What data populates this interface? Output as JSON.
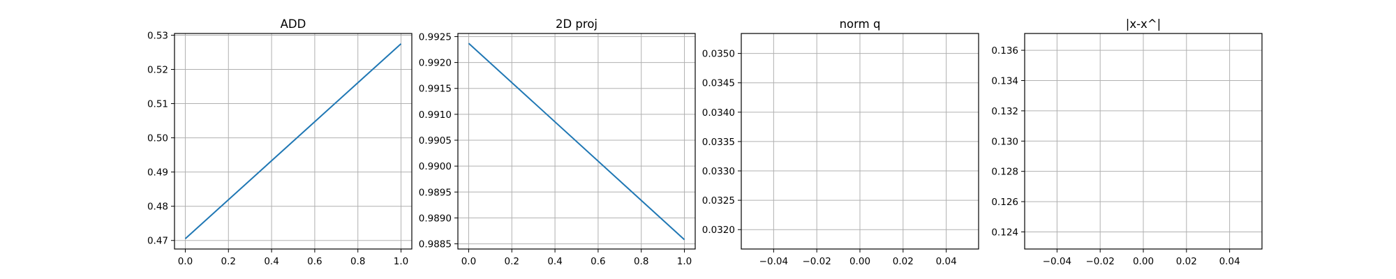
{
  "chart_data": [
    {
      "type": "line",
      "title": "ADD",
      "x": [
        0.0,
        1.0
      ],
      "series": [
        {
          "values": [
            0.4705,
            0.5275
          ]
        }
      ],
      "xlim": [
        -0.05,
        1.05
      ],
      "ylim": [
        0.4675,
        0.5305
      ],
      "xticks": [
        "0.0",
        "0.2",
        "0.4",
        "0.6",
        "0.8",
        "1.0"
      ],
      "yticks": [
        "0.47",
        "0.48",
        "0.49",
        "0.50",
        "0.51",
        "0.52",
        "0.53"
      ],
      "grid": true
    },
    {
      "type": "line",
      "title": "2D proj",
      "x": [
        0.0,
        1.0
      ],
      "series": [
        {
          "values": [
            0.99237,
            0.98858
          ]
        }
      ],
      "xlim": [
        -0.05,
        1.05
      ],
      "ylim": [
        0.9884,
        0.99256
      ],
      "xticks": [
        "0.0",
        "0.2",
        "0.4",
        "0.6",
        "0.8",
        "1.0"
      ],
      "yticks": [
        "0.9885",
        "0.9890",
        "0.9895",
        "0.9900",
        "0.9905",
        "0.9910",
        "0.9915",
        "0.9920",
        "0.9925"
      ],
      "grid": true
    },
    {
      "type": "line",
      "title": "norm q",
      "x": [],
      "series": [
        {
          "values": []
        }
      ],
      "xlim": [
        -0.055,
        0.055
      ],
      "ylim": [
        0.03167,
        0.03534
      ],
      "xticks": [
        "−0.04",
        "−0.02",
        "0.00",
        "0.02",
        "0.04"
      ],
      "yticks": [
        "0.0320",
        "0.0325",
        "0.0330",
        "0.0335",
        "0.0340",
        "0.0345",
        "0.0350"
      ],
      "grid": true
    },
    {
      "type": "line",
      "title": "|x-x^|",
      "x": [],
      "series": [
        {
          "values": []
        }
      ],
      "xlim": [
        -0.055,
        0.055
      ],
      "ylim": [
        0.12287,
        0.13711
      ],
      "xticks": [
        "−0.04",
        "−0.02",
        "0.00",
        "0.02",
        "0.04"
      ],
      "yticks": [
        "0.124",
        "0.126",
        "0.128",
        "0.130",
        "0.132",
        "0.134",
        "0.136"
      ],
      "grid": true
    }
  ],
  "colors": {
    "line": "#1f77b4",
    "grid": "#b0b0b0",
    "frame": "#000000"
  }
}
